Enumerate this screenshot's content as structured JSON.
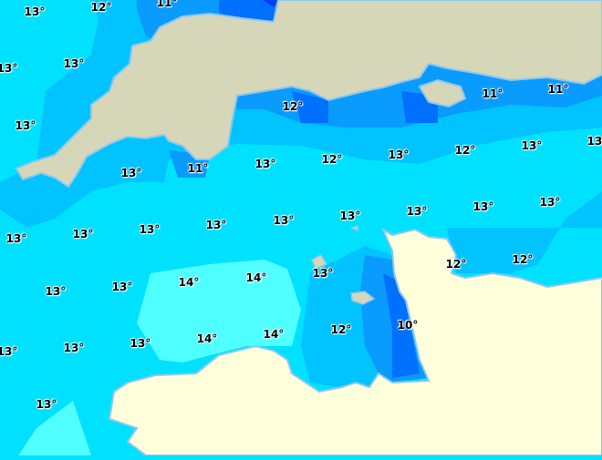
{
  "map": {
    "unit": "°",
    "colors": {
      "sea_14": "#50ffff",
      "sea_13": "#00e1ff",
      "sea_12": "#00c3ff",
      "sea_11": "#0a9bff",
      "sea_10": "#0070ff",
      "sea_9": "#0040f0",
      "land_england": "#d6d6b8",
      "land_france": "#ffffdc",
      "coast": "#8cc8f0"
    },
    "labels": [
      "13°",
      "12°",
      "11°",
      "13°",
      "13°",
      "13°",
      "12°",
      "11°",
      "11°",
      "13°",
      "11°",
      "13°",
      "12°",
      "13°",
      "12°",
      "13°",
      "13°",
      "13°",
      "13°",
      "13°",
      "13°",
      "13°",
      "13°",
      "13°",
      "13°",
      "13°",
      "13°",
      "13°",
      "14°",
      "14°",
      "13°",
      "12°",
      "12°",
      "13°",
      "13°",
      "13°",
      "14°",
      "14°",
      "12°",
      "10°",
      "13°"
    ]
  }
}
